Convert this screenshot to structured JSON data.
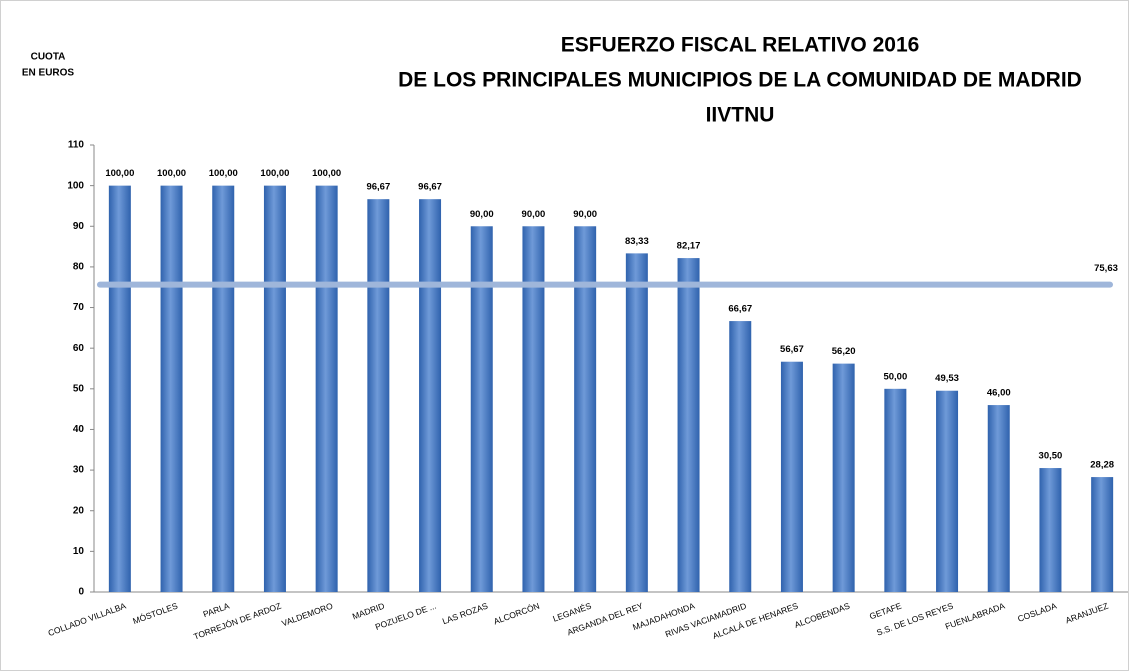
{
  "chart_data": {
    "type": "bar",
    "title": [
      "ESFUERZO FISCAL RELATIVO 2016",
      "DE LOS PRINCIPALES MUNICIPIOS DE LA COMUNIDAD DE MADRID",
      "IIVTNU"
    ],
    "ylabel": [
      "CUOTA",
      "EN EUROS"
    ],
    "categories": [
      "COLLADO VILLALBA",
      "MÓSTOLES",
      "PARLA",
      "TORREJÓN DE ARDOZ",
      "VALDEMORO",
      "MADRID",
      "POZUELO DE ...",
      "LAS ROZAS",
      "ALCORCÓN",
      "LEGANÉS",
      "ARGANDA DEL REY",
      "MAJADAHONDA",
      "RIVAS VACIAMADRID",
      "ALCALÁ DE HENARES",
      "ALCOBENDAS",
      "GETAFE",
      "S.S. DE LOS REYES",
      "FUENLABRADA",
      "COSLADA",
      "ARANJUEZ"
    ],
    "values": [
      100,
      100,
      100,
      100,
      100,
      96.67,
      96.67,
      90,
      90,
      90,
      83.33,
      82.17,
      66.67,
      56.67,
      56.2,
      50,
      49.53,
      46,
      30.5,
      28.28
    ],
    "value_labels": [
      "100,00",
      "100,00",
      "100,00",
      "100,00",
      "100,00",
      "96,67",
      "96,67",
      "90,00",
      "90,00",
      "90,00",
      "83,33",
      "82,17",
      "66,67",
      "56,67",
      "56,20",
      "50,00",
      "49,53",
      "46,00",
      "30,50",
      "28,28"
    ],
    "color": "#2f62ad",
    "reference_line": {
      "value": 75.63,
      "label": "75,63",
      "color": "#9fb6da"
    },
    "ylim": [
      0,
      110
    ],
    "yticks": [
      0,
      10,
      20,
      30,
      40,
      50,
      60,
      70,
      80,
      90,
      100,
      110
    ]
  }
}
